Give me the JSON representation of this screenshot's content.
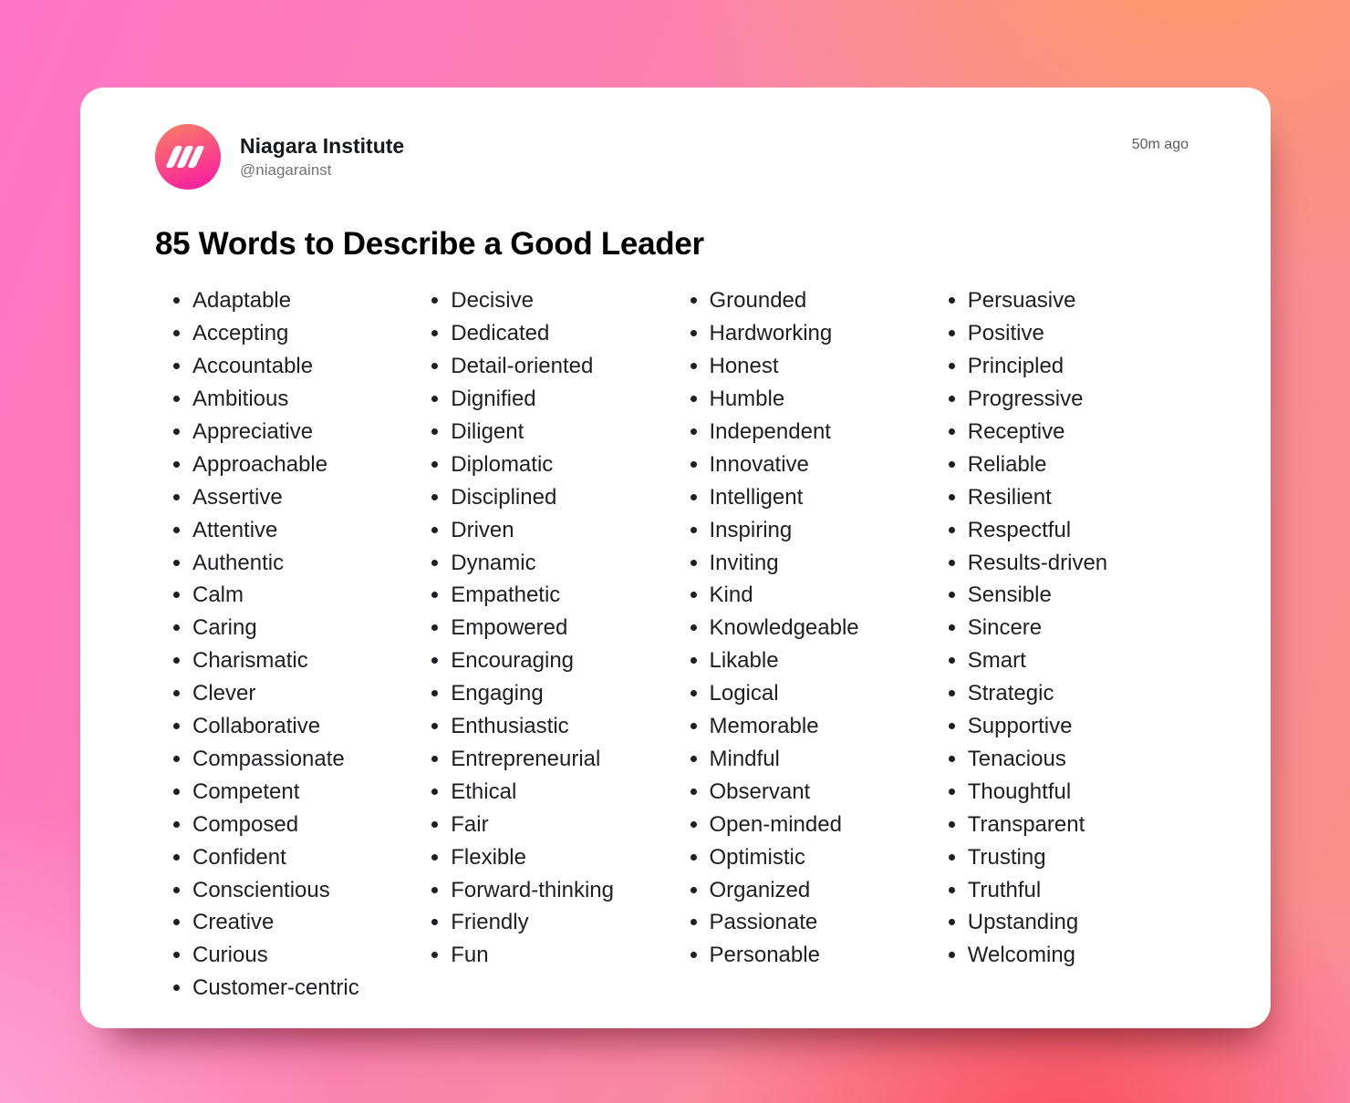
{
  "post": {
    "author": "Niagara Institute",
    "handle": "@niagarainst",
    "timestamp": "50m ago",
    "title": "85 Words to Describe a Good Leader"
  },
  "icons": {
    "logo": "niagara-logo-icon"
  },
  "colors": {
    "card_bg": "#ffffff",
    "text_primary": "#1f1f23",
    "text_secondary": "#747474",
    "logo_gradient_top": "#fa7a68",
    "logo_gradient_bottom": "#f7219f",
    "bg_top_left": "#ff74c6",
    "bg_top_right": "#fa9b68",
    "bg_bottom_left": "#ffb3dd",
    "bg_bottom_right_red": "#fa4b5c",
    "bg_bottom_corner_pink": "#fd8cc0"
  },
  "word_columns": [
    [
      "Adaptable",
      "Accepting",
      "Accountable",
      "Ambitious",
      "Appreciative",
      "Approachable",
      "Assertive",
      "Attentive",
      "Authentic",
      "Calm",
      "Caring",
      "Charismatic",
      "Clever",
      "Collaborative",
      "Compassionate",
      "Competent",
      "Composed",
      "Confident",
      "Conscientious",
      "Creative",
      "Curious",
      "Customer-centric"
    ],
    [
      "Decisive",
      "Dedicated",
      "Detail-oriented",
      "Dignified",
      "Diligent",
      "Diplomatic",
      "Disciplined",
      "Driven",
      "Dynamic",
      "Empathetic",
      "Empowered",
      "Encouraging",
      "Engaging",
      "Enthusiastic",
      "Entrepreneurial",
      "Ethical",
      "Fair",
      "Flexible",
      "Forward-thinking",
      "Friendly",
      "Fun"
    ],
    [
      "Grounded",
      "Hardworking",
      "Honest",
      "Humble",
      "Independent",
      "Innovative",
      "Intelligent",
      "Inspiring",
      "Inviting",
      "Kind",
      "Knowledgeable",
      "Likable",
      "Logical",
      "Memorable",
      "Mindful",
      "Observant",
      "Open-minded",
      "Optimistic",
      "Organized",
      "Passionate",
      "Personable"
    ],
    [
      "Persuasive",
      "Positive",
      "Principled",
      "Progressive",
      "Receptive",
      "Reliable",
      "Resilient",
      "Respectful",
      "Results-driven",
      "Sensible",
      "Sincere",
      "Smart",
      "Strategic",
      "Supportive",
      "Tenacious",
      "Thoughtful",
      "Transparent",
      "Trusting",
      "Truthful",
      "Upstanding",
      "Welcoming"
    ]
  ]
}
